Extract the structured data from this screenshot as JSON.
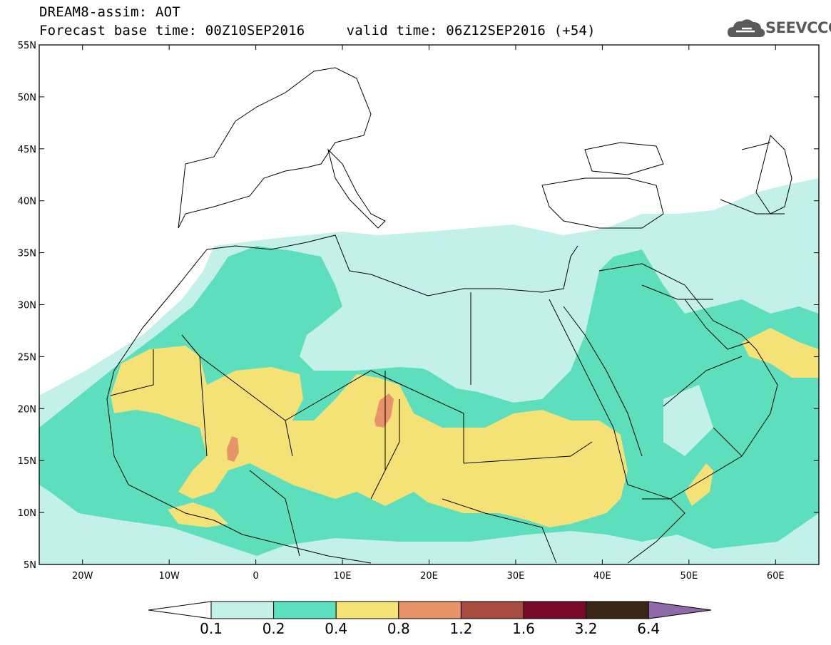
{
  "header": {
    "title": "DREAM8-assim: AOT",
    "subtitle": "Forecast base time: 00Z10SEP2016     valid time: 06Z12SEP2016 (+54)",
    "logo_text": "SEEVCCC"
  },
  "map": {
    "lon_range": [
      -25,
      65
    ],
    "lat_range": [
      5,
      55
    ],
    "lat_ticks": [
      "55N",
      "50N",
      "45N",
      "40N",
      "35N",
      "30N",
      "25N",
      "20N",
      "15N",
      "10N",
      "5N"
    ],
    "lon_ticks": [
      "20W",
      "10W",
      "0",
      "10E",
      "20E",
      "30E",
      "40E",
      "50E",
      "60E"
    ]
  },
  "legend": {
    "levels": [
      "0.1",
      "0.2",
      "0.4",
      "0.8",
      "1.2",
      "1.6",
      "3.2",
      "6.4"
    ],
    "colors": [
      "#c4f0ea",
      "#5ddfbd",
      "#f5e276",
      "#e8936a",
      "#a84b3f",
      "#7a0a2a",
      "#3a2414",
      "#8f6aa8"
    ]
  }
}
